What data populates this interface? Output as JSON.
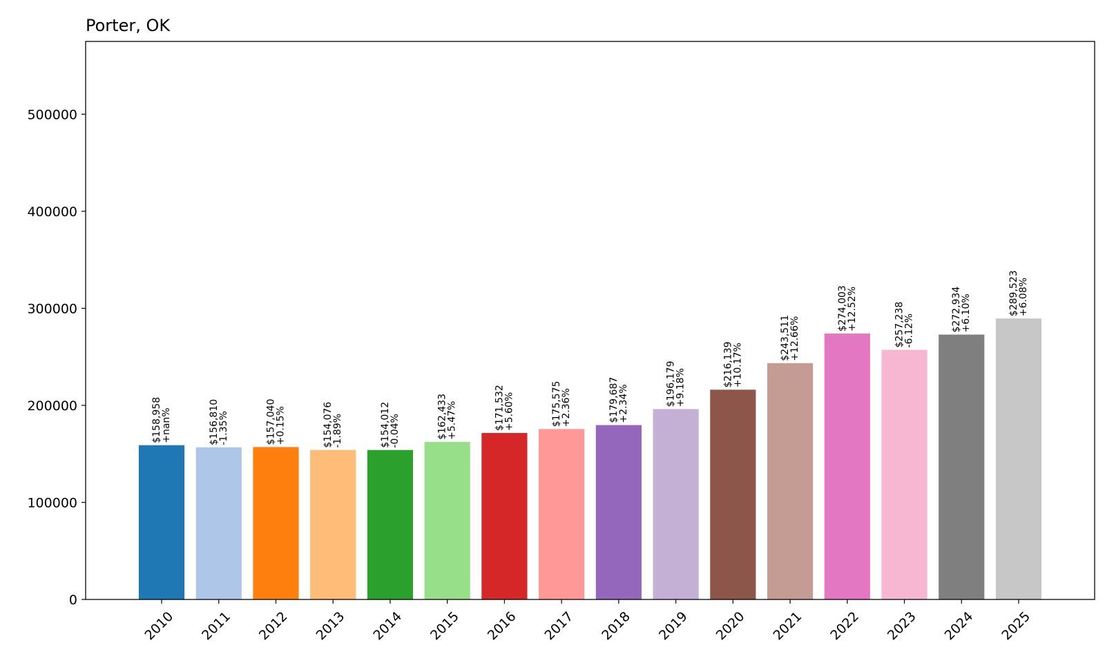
{
  "chart_data": {
    "type": "bar",
    "title": "Porter, OK",
    "xlabel": "",
    "ylabel": "",
    "ylim": [
      0,
      575000
    ],
    "yticks": [
      0,
      100000,
      200000,
      300000,
      400000,
      500000
    ],
    "ytick_labels": [
      "0",
      "100000",
      "200000",
      "300000",
      "400000",
      "500000"
    ],
    "grid": false,
    "categories": [
      "2010",
      "2011",
      "2012",
      "2013",
      "2014",
      "2015",
      "2016",
      "2017",
      "2018",
      "2019",
      "2020",
      "2021",
      "2022",
      "2023",
      "2024",
      "2025"
    ],
    "values": [
      158958,
      156810,
      157040,
      154076,
      154012,
      162433,
      171532,
      175575,
      179687,
      196179,
      216139,
      243511,
      274003,
      257238,
      272934,
      289523
    ],
    "value_labels": [
      "$158,958",
      "$156,810",
      "$157,040",
      "$154,076",
      "$154,012",
      "$162,433",
      "$171,532",
      "$175,575",
      "$179,687",
      "$196,179",
      "$216,139",
      "$243,511",
      "$274,003",
      "$257,238",
      "$272,934",
      "$289,523"
    ],
    "change_labels": [
      "+nan%",
      "-1.35%",
      "+0.15%",
      "-1.89%",
      "-0.04%",
      "+5.47%",
      "+5.60%",
      "+2.36%",
      "+2.34%",
      "+9.18%",
      "+10.17%",
      "+12.66%",
      "+12.52%",
      "-6.12%",
      "+6.10%",
      "+6.08%"
    ],
    "colors": [
      "#1f77b4",
      "#aec7e8",
      "#ff7f0e",
      "#ffbb78",
      "#2ca02c",
      "#98df8a",
      "#d62728",
      "#ff9896",
      "#9467bd",
      "#c5b0d5",
      "#8c564b",
      "#c49c94",
      "#e377c2",
      "#f7b6d2",
      "#7f7f7f",
      "#c7c7c7"
    ]
  }
}
